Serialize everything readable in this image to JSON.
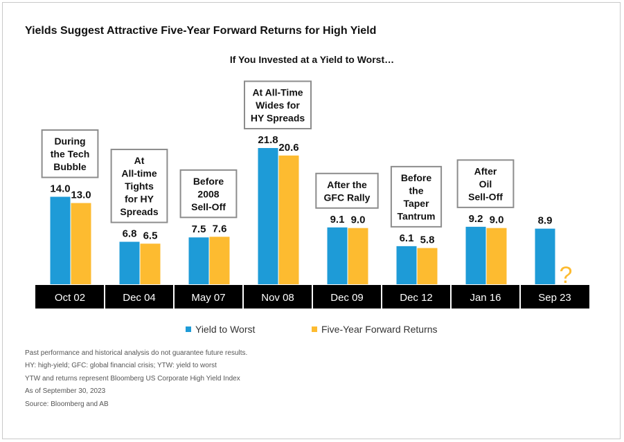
{
  "chart_data": {
    "type": "bar",
    "title": "Yields Suggest Attractive Five-Year Forward Returns for High Yield",
    "subtitle": "If You Invested at a Yield to Worst…",
    "categories": [
      "Oct 02",
      "Dec 04",
      "May 07",
      "Nov 08",
      "Dec 09",
      "Dec 12",
      "Jan 16",
      "Sep 23"
    ],
    "annotations": [
      [
        "During",
        "the Tech",
        "Bubble"
      ],
      [
        "At",
        "All-time",
        "Tights",
        "for HY",
        "Spreads"
      ],
      [
        "Before",
        "2008",
        "Sell-Off"
      ],
      [
        "At All-Time",
        "Wides for",
        "HY Spreads"
      ],
      [
        "After the",
        "GFC Rally"
      ],
      [
        "Before",
        "the",
        "Taper",
        "Tantrum"
      ],
      [
        "After",
        "Oil",
        "Sell-Off"
      ],
      []
    ],
    "series": [
      {
        "name": "Yield to Worst",
        "color": "#1e9bd7",
        "values": [
          14.0,
          6.8,
          7.5,
          21.8,
          9.1,
          6.1,
          9.2,
          8.9
        ]
      },
      {
        "name": "Five-Year Forward Returns",
        "color": "#fdbb30",
        "values": [
          13.0,
          6.5,
          7.6,
          20.6,
          9.0,
          5.8,
          9.0,
          null
        ]
      }
    ],
    "unknown_marker": "?",
    "xlabel": "",
    "ylabel": "",
    "ylim": [
      0,
      21.8
    ],
    "grid": false,
    "legend_position": "bottom-center"
  },
  "notes": [
    "Past performance and historical analysis do not guarantee future results.",
    "HY: high-yield; GFC: global financial crisis; YTW: yield to worst",
    "YTW and returns represent Bloomberg US Corporate High Yield Index",
    "As of September 30, 2023",
    "Source: Bloomberg and AB"
  ],
  "colors": {
    "axis_band": "#000000",
    "axis_text": "#ffffff",
    "annotation_border": "#8c8c8c",
    "question_mark": "#fdbb30"
  }
}
